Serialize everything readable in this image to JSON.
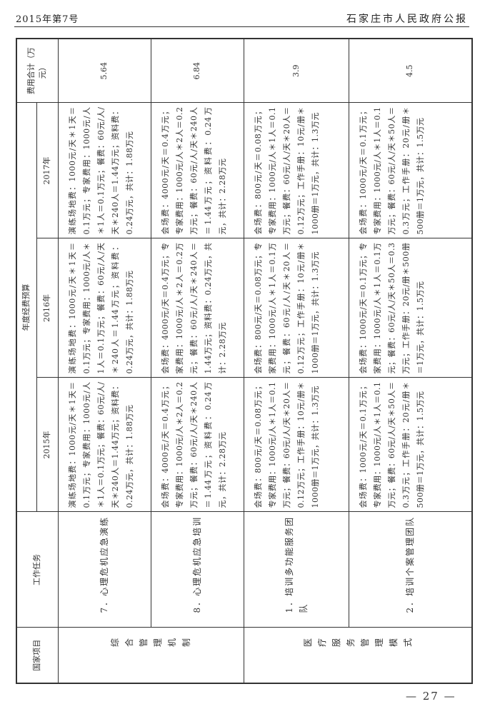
{
  "header": {
    "issue": "2015年第7号",
    "publication": "石家庄市人民政府公报"
  },
  "footer": {
    "page": "— 27 —"
  },
  "table": {
    "headers": {
      "project": "国家项目",
      "task": "工作任务",
      "budget": "年度经费预算",
      "years": [
        "2015年",
        "2016年",
        "2017年"
      ],
      "total": "费用合计（万元）"
    },
    "groups": [
      {
        "project": "综 合 管 理 机制"
      },
      {
        "project": "医疗服务管理模式"
      }
    ],
    "rows": [
      {
        "task": "7．心理危机应急演练",
        "y2015": "演练场地费：1000元/天＊1天＝0.1万元；专家费用：1000元/人＊1人＝0.1万元；餐费：60元/人/天＊240人＝1.44万元；资料费：0.24万元，共计：1.88万元",
        "y2016": "演练场地费：1000元/天＊1天＝0.1万元；专家费用：1000元/人＊1人＝0.1万元；餐费：60元/人/天＊240人＝1.44万元；资料费：0.24万元，共计：1.88万元",
        "y2017": "演练场地费：1000元/天＊1天＝0.1万元；专家费用：1000元/人＊1人＝0.1万元；餐费：60元/人/天＊240人＝1.44万元；资料费：0.24万元，共计：1.88万元",
        "total": "5.64"
      },
      {
        "task": "8．心理危机应急培训",
        "y2015": "会场费：4000元/天＝0.4万元；专家费用：1000元/人＊2人＝0.2万元；餐费：60元/人/天＊240人＝1.44万元；资料费：0.24万元，共计：2.28万元",
        "y2016": "会场费：4000元/天＝0.4万元；专家费用：1000元/人＊2人＝0.2万元；餐费：60元/人/天＊240人＝1.44万元；资料费：0.24万元，共计：2.28万元",
        "y2017": "会场费：4000元/天＝0.4万元；专家费用：1000元/人＊2人＝0.2万元；餐费：60元/人/天＊240人＝1.44万元；资料费：0.24万元，共计：2.28万元",
        "total": "6.84"
      },
      {
        "task": "1．培训多功能服务团队",
        "y2015": "会场费：800元/天＝0.08万元；专家费用：1000元/人＊1人＝0.1万元；餐费：60元/人/天＊20人＝0.12万元；工作手册：10元/册＊1000册＝1万元，共计：1.3万元",
        "y2016": "会场费：800元/天＝0.08万元；专家费用：1000元/人＊1人＝0.1万元；餐费：60元/人/天＊20人＝0.12万元；工作手册：10元/册＊1000册＝1万元，共计：1.3万元",
        "y2017": "会场费：800元/天＝0.08万元；专家费用：1000元/人＊1人＝0.1万元；餐费：60元/人/天＊20人＝0.12万元；工作手册：10元/册＊1000册＝1万元，共计：1.3万元",
        "total": "3.9"
      },
      {
        "task": "2．培训个案管理团队",
        "y2015": "会场费：1000元/天＝0.1万元；专家费用：1000元/人＊1人＝0.1万元；餐费：60元/人/天＊50人＝0.3万元；工作手册：20元/册＊500册＝1万元，共计：1.5万元",
        "y2016": "会场费：1000元/天＝0.1万元；专家费用：1000元/人＊1人＝0.1万元；餐费：60元/人/天＊50人＝0.3万元；工作手册：20元/册＊500册＝1万元，共计：1.5万元",
        "y2017": "会场费：1000元/天＝0.1万元；专家费用：1000元/人＊1人＝0.1万元；餐费：60元/人/天＊50人＝0.3万元；工作手册：20元/册＊500册＝1万元，共计：1.5万元",
        "total": "4.5"
      }
    ]
  }
}
